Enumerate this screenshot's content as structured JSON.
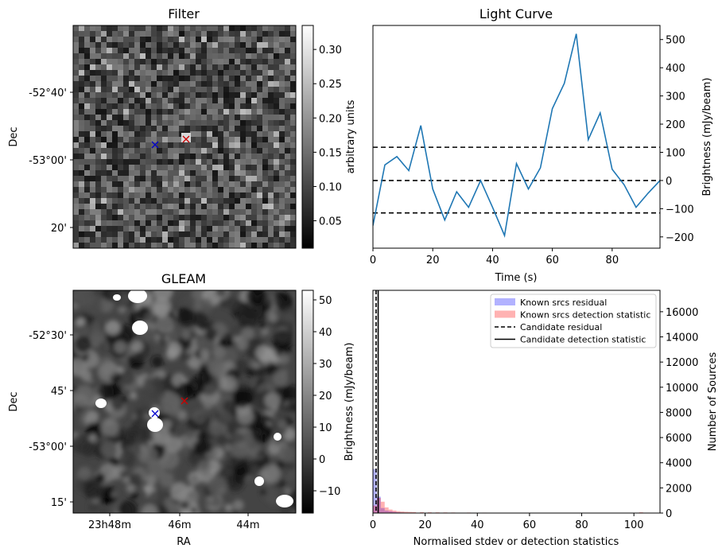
{
  "chart_data": [
    {
      "type": "heatmap",
      "title": "Filter",
      "ylabel": "Dec",
      "y_ticks": [
        "-52°40'",
        "-53°00'",
        "20'"
      ],
      "colorbar": {
        "label": "arbitrary units",
        "ticks": [
          0.05,
          0.1,
          0.15,
          0.2,
          0.25,
          0.3
        ],
        "range": [
          0.01,
          0.335
        ],
        "colormap": "gray"
      },
      "markers": [
        {
          "symbol": "x",
          "color": "#0000cc"
        },
        {
          "symbol": "x",
          "color": "#cc0000"
        }
      ]
    },
    {
      "type": "line",
      "title": "Light Curve",
      "xlabel": "Time (s)",
      "ylabel": "Brightness (mJy/beam)",
      "xlim": [
        0,
        96
      ],
      "ylim": [
        -240,
        550
      ],
      "x_ticks": [
        0,
        20,
        40,
        60,
        80
      ],
      "y_ticks": [
        -200,
        -100,
        0,
        100,
        200,
        300,
        400,
        500
      ],
      "y_axis_side": "right",
      "series": [
        {
          "color": "#1f77b4",
          "x": [
            0,
            4,
            8,
            12,
            16,
            20,
            24,
            28,
            32,
            36,
            40,
            44,
            48,
            52,
            56,
            60,
            64,
            68,
            72,
            76,
            80,
            84,
            88,
            92,
            96
          ],
          "y": [
            -160,
            55,
            85,
            35,
            195,
            -30,
            -140,
            -40,
            -95,
            0,
            -95,
            -195,
            60,
            -30,
            45,
            255,
            345,
            520,
            145,
            240,
            40,
            -15,
            -95,
            -45,
            0
          ]
        }
      ],
      "hlines": [
        {
          "y": 118,
          "style": "dashed",
          "color": "#000000"
        },
        {
          "y": 0,
          "style": "dashed",
          "color": "#000000"
        },
        {
          "y": -115,
          "style": "dashed",
          "color": "#000000"
        }
      ]
    },
    {
      "type": "heatmap",
      "title": "GLEAM",
      "xlabel": "RA",
      "ylabel": "Dec",
      "x_ticks": [
        "23h48m",
        "46m",
        "44m"
      ],
      "y_ticks": [
        "-52°30'",
        "45'",
        "-53°00'",
        "15'"
      ],
      "colorbar": {
        "label": "Brightness (mJy/beam)",
        "ticks": [
          -10,
          0,
          10,
          20,
          30,
          40,
          50
        ],
        "range": [
          -17,
          53
        ],
        "colormap": "gray"
      },
      "markers": [
        {
          "symbol": "x",
          "color": "#0000cc"
        },
        {
          "symbol": "x",
          "color": "#cc0000"
        }
      ]
    },
    {
      "type": "bar",
      "xlabel": "Normalised stdev or detection statistics",
      "ylabel": "Number of Sources",
      "xlim": [
        0,
        110
      ],
      "ylim": [
        0,
        17700
      ],
      "x_ticks": [
        0,
        20,
        40,
        60,
        80,
        100
      ],
      "y_ticks": [
        0,
        2000,
        4000,
        6000,
        8000,
        10000,
        12000,
        14000,
        16000
      ],
      "y_axis_side": "right",
      "legend_position": "top-right",
      "bin_width": 1.5,
      "series": [
        {
          "name": "Known srcs residual",
          "color": "#0000ff",
          "bin_starts": [
            0,
            1.5,
            3,
            4.5,
            6,
            7.5,
            9,
            10.5,
            12
          ],
          "values": [
            3500,
            1300,
            400,
            200,
            150,
            100,
            60,
            40,
            30
          ]
        },
        {
          "name": "Known srcs detection statistic",
          "color": "#ff0000",
          "bin_starts": [
            0,
            1.5,
            3,
            4.5,
            6,
            7.5,
            9,
            10.5,
            12,
            13.5,
            15,
            18,
            21,
            24,
            27,
            30,
            36,
            42,
            48,
            54,
            60,
            70,
            80,
            95,
            102
          ],
          "values": [
            600,
            1200,
            900,
            450,
            280,
            200,
            150,
            120,
            100,
            90,
            80,
            70,
            60,
            55,
            50,
            45,
            40,
            35,
            30,
            25,
            20,
            15,
            10,
            20,
            60
          ]
        }
      ],
      "vlines": [
        {
          "name": "Candidate residual",
          "x": 1.2,
          "style": "dashed",
          "color": "#000000"
        },
        {
          "name": "Candidate detection statistic",
          "x": 2.0,
          "style": "solid",
          "color": "#000000"
        }
      ]
    }
  ]
}
